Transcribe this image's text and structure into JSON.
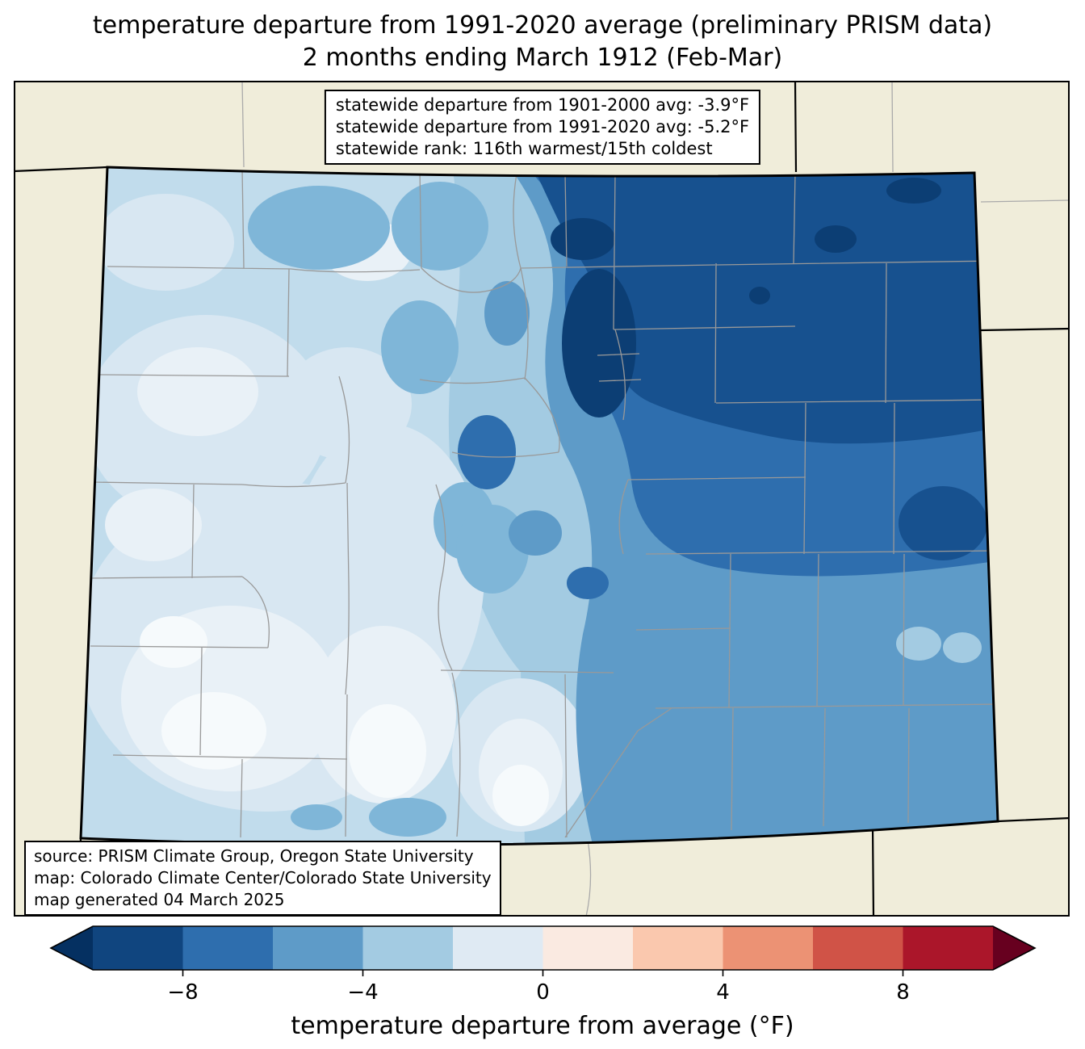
{
  "title": {
    "line1": "temperature departure from 1991-2020 average (preliminary PRISM data)",
    "line2": "2 months ending March 1912 (Feb-Mar)"
  },
  "stats_box": {
    "lines": [
      "statewide departure from 1901-2000 avg: -3.9°F",
      "statewide departure from 1991-2020 avg: -5.2°F",
      "statewide rank: 116th warmest/15th coldest"
    ]
  },
  "source_box": {
    "lines": [
      "source: PRISM Climate Group, Oregon State University",
      "map: Colorado Climate Center/Colorado State University",
      "map generated 04 March 2025"
    ]
  },
  "colorbar": {
    "label": "temperature departure from average (°F)",
    "ticks": [
      "−8",
      "−4",
      "0",
      "4",
      "8"
    ],
    "tick_values": [
      -8,
      -4,
      0,
      4,
      8
    ],
    "range": [
      -10,
      10
    ],
    "units": "°F",
    "segments": [
      "#10457f",
      "#2e6eae",
      "#5e9bc8",
      "#a3cbe2",
      "#dfeaf3",
      "#faeae1",
      "#fac8ae",
      "#ec9274",
      "#d05347",
      "#ab162a"
    ],
    "left_arrow_color": "#053061",
    "right_arrow_color": "#67001f"
  },
  "map": {
    "region": "Colorado",
    "background_color": "#f0edda",
    "state_border_color": "#000000",
    "county_line_color": "#999999",
    "palette": {
      "lvl_0": "#f6fafc",
      "lvl_m1": "#e9f1f7",
      "lvl_m2": "#d8e7f2",
      "lvl_m3": "#c1dcec",
      "lvl_m4": "#a3cbe2",
      "lvl_m5": "#7fb6d8",
      "lvl_m6": "#5e9bc8",
      "lvl_m7": "#4285bd",
      "lvl_m8": "#2e6eae",
      "lvl_m9": "#17518f",
      "lvl_m10": "#0c3e74",
      "lvl_m11": "#053061"
    }
  }
}
